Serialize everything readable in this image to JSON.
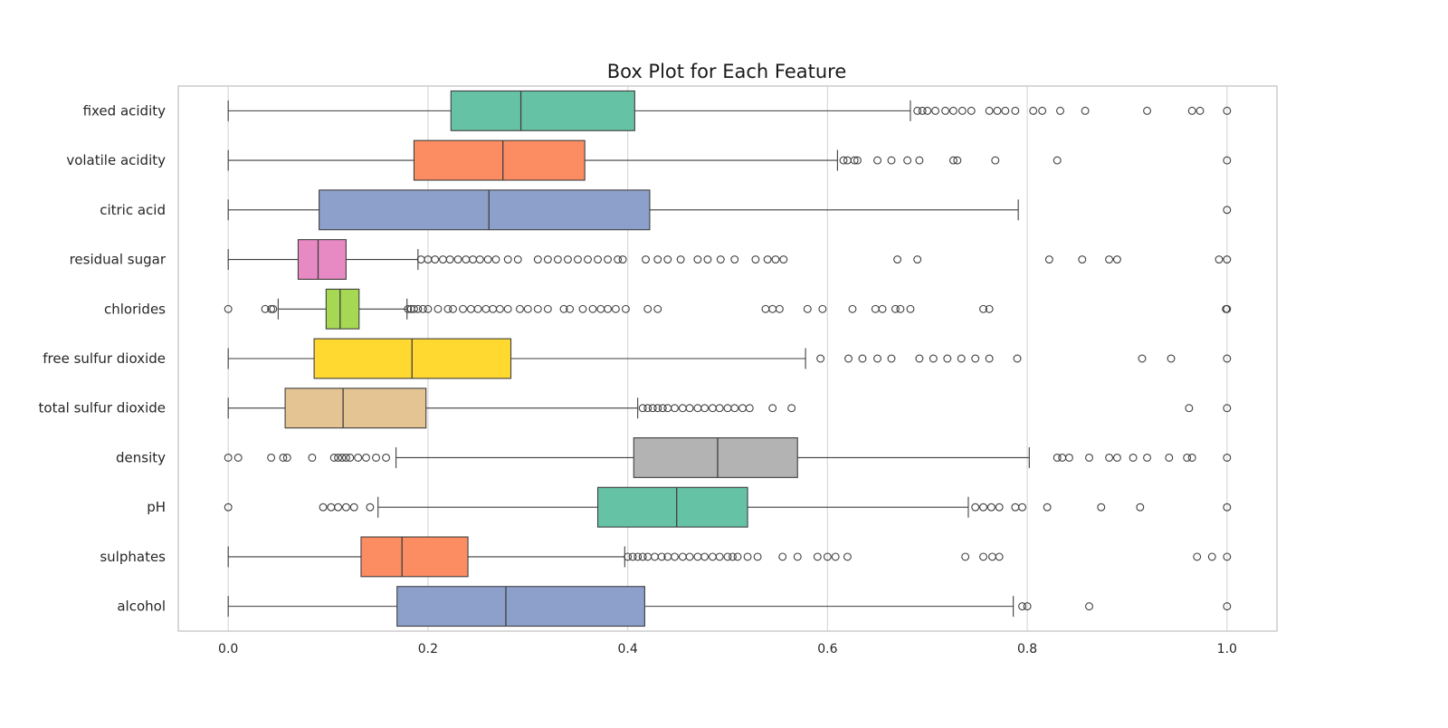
{
  "chart_data": {
    "type": "box",
    "title": "Box Plot for Each Feature",
    "orientation": "horizontal",
    "xlim": [
      -0.05,
      1.05
    ],
    "xticks": [
      0.0,
      0.2,
      0.4,
      0.6,
      0.8,
      1.0
    ],
    "xtick_labels": [
      "0.0",
      "0.2",
      "0.4",
      "0.6",
      "0.8",
      "1.0"
    ],
    "grid": "vertical",
    "legend": "none",
    "palette": [
      "#66c2a5",
      "#fc8d62",
      "#8da0cb",
      "#e78ac3",
      "#a6d854",
      "#ffd92f",
      "#e5c494",
      "#b3b3b3"
    ],
    "series": [
      {
        "name": "fixed acidity",
        "whisker_low": 0.0,
        "q1": 0.223,
        "median": 0.293,
        "q3": 0.407,
        "whisker_high": 0.683,
        "outliers": [
          0.69,
          0.695,
          0.7,
          0.708,
          0.718,
          0.726,
          0.735,
          0.744,
          0.762,
          0.77,
          0.778,
          0.788,
          0.806,
          0.815,
          0.833,
          0.858,
          0.92,
          0.965,
          0.973,
          1.0
        ]
      },
      {
        "name": "volatile acidity",
        "whisker_low": 0.0,
        "q1": 0.186,
        "median": 0.275,
        "q3": 0.357,
        "whisker_high": 0.61,
        "outliers": [
          0.616,
          0.62,
          0.627,
          0.63,
          0.65,
          0.664,
          0.68,
          0.692,
          0.726,
          0.73,
          0.768,
          0.83,
          1.0
        ]
      },
      {
        "name": "citric acid",
        "whisker_low": 0.0,
        "q1": 0.091,
        "median": 0.261,
        "q3": 0.422,
        "whisker_high": 0.791,
        "outliers": [
          1.0
        ]
      },
      {
        "name": "residual sugar",
        "whisker_low": 0.0,
        "q1": 0.07,
        "median": 0.09,
        "q3": 0.118,
        "whisker_high": 0.19,
        "outliers": [
          0.193,
          0.2,
          0.207,
          0.215,
          0.222,
          0.23,
          0.238,
          0.245,
          0.252,
          0.26,
          0.268,
          0.28,
          0.29,
          0.31,
          0.32,
          0.33,
          0.34,
          0.35,
          0.36,
          0.37,
          0.38,
          0.39,
          0.395,
          0.418,
          0.43,
          0.44,
          0.453,
          0.47,
          0.48,
          0.493,
          0.507,
          0.528,
          0.54,
          0.548,
          0.556,
          0.67,
          0.69,
          0.822,
          0.855,
          0.882,
          0.89,
          0.992,
          1.0
        ]
      },
      {
        "name": "chlorides",
        "whisker_low": 0.05,
        "q1": 0.098,
        "median": 0.112,
        "q3": 0.131,
        "whisker_high": 0.179,
        "outliers": [
          0.0,
          0.037,
          0.043,
          0.045,
          0.18,
          0.183,
          0.186,
          0.19,
          0.195,
          0.2,
          0.21,
          0.22,
          0.225,
          0.235,
          0.243,
          0.25,
          0.258,
          0.265,
          0.272,
          0.28,
          0.292,
          0.3,
          0.31,
          0.32,
          0.336,
          0.342,
          0.355,
          0.365,
          0.373,
          0.38,
          0.388,
          0.398,
          0.42,
          0.43,
          0.538,
          0.545,
          0.552,
          0.58,
          0.595,
          0.625,
          0.648,
          0.655,
          0.668,
          0.673,
          0.683,
          0.756,
          0.762,
          0.999,
          1.0
        ]
      },
      {
        "name": "free sulfur dioxide",
        "whisker_low": 0.0,
        "q1": 0.086,
        "median": 0.184,
        "q3": 0.283,
        "whisker_high": 0.578,
        "outliers": [
          0.593,
          0.621,
          0.635,
          0.65,
          0.664,
          0.692,
          0.706,
          0.72,
          0.734,
          0.748,
          0.762,
          0.79,
          0.915,
          0.944,
          1.0
        ]
      },
      {
        "name": "total sulfur dioxide",
        "whisker_low": 0.0,
        "q1": 0.057,
        "median": 0.115,
        "q3": 0.198,
        "whisker_high": 0.41,
        "outliers": [
          0.415,
          0.42,
          0.425,
          0.43,
          0.435,
          0.44,
          0.447,
          0.455,
          0.462,
          0.47,
          0.477,
          0.485,
          0.492,
          0.5,
          0.507,
          0.515,
          0.522,
          0.545,
          0.564,
          0.962,
          1.0
        ]
      },
      {
        "name": "density",
        "whisker_low": 0.168,
        "q1": 0.406,
        "median": 0.49,
        "q3": 0.57,
        "whisker_high": 0.802,
        "outliers": [
          0.0,
          0.01,
          0.043,
          0.055,
          0.059,
          0.084,
          0.106,
          0.11,
          0.114,
          0.118,
          0.122,
          0.13,
          0.138,
          0.148,
          0.158,
          0.83,
          0.835,
          0.842,
          0.862,
          0.882,
          0.89,
          0.906,
          0.92,
          0.942,
          0.96,
          0.965,
          1.0
        ]
      },
      {
        "name": "pH",
        "whisker_low": 0.15,
        "q1": 0.37,
        "median": 0.449,
        "q3": 0.52,
        "whisker_high": 0.741,
        "outliers": [
          0.0,
          0.095,
          0.103,
          0.11,
          0.118,
          0.126,
          0.142,
          0.748,
          0.756,
          0.764,
          0.772,
          0.788,
          0.795,
          0.82,
          0.874,
          0.913,
          1.0
        ]
      },
      {
        "name": "sulphates",
        "whisker_low": 0.0,
        "q1": 0.133,
        "median": 0.174,
        "q3": 0.24,
        "whisker_high": 0.397,
        "outliers": [
          0.4,
          0.405,
          0.41,
          0.415,
          0.42,
          0.427,
          0.434,
          0.44,
          0.447,
          0.455,
          0.462,
          0.47,
          0.477,
          0.485,
          0.492,
          0.5,
          0.505,
          0.51,
          0.52,
          0.53,
          0.555,
          0.57,
          0.59,
          0.6,
          0.608,
          0.62,
          0.738,
          0.756,
          0.765,
          0.772,
          0.97,
          0.985,
          1.0
        ]
      },
      {
        "name": "alcohol",
        "whisker_low": 0.0,
        "q1": 0.169,
        "median": 0.278,
        "q3": 0.417,
        "whisker_high": 0.786,
        "outliers": [
          0.795,
          0.8,
          0.862,
          1.0
        ]
      }
    ]
  }
}
